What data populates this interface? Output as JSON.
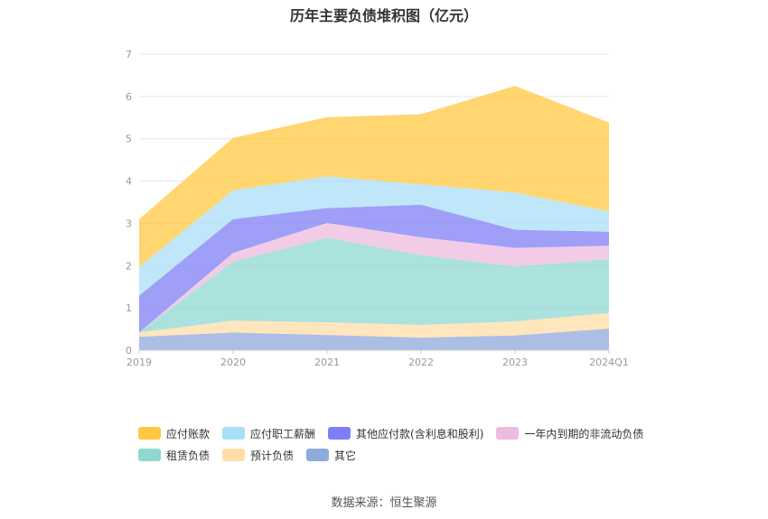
{
  "chart_data": {
    "type": "area",
    "stacked": true,
    "title": "历年主要负债堆积图（亿元）",
    "categories": [
      "2019",
      "2020",
      "2021",
      "2022",
      "2023",
      "2024Q1"
    ],
    "ylim": [
      0,
      7
    ],
    "yticks": [
      "0",
      "1",
      "2",
      "3",
      "4",
      "5",
      "6",
      "7"
    ],
    "grid": true,
    "legend_position": "bottom",
    "series": [
      {
        "name": "其它",
        "color": "#8FAADC",
        "values": [
          0.32,
          0.42,
          0.36,
          0.3,
          0.35,
          0.51
        ]
      },
      {
        "name": "预计负债",
        "color": "#FFDDA6",
        "values": [
          0.1,
          0.28,
          0.3,
          0.3,
          0.33,
          0.37
        ]
      },
      {
        "name": "租赁负债",
        "color": "#8FD8D2",
        "values": [
          0.0,
          1.4,
          2.0,
          1.65,
          1.3,
          1.27
        ]
      },
      {
        "name": "一年内到期的非流动负债",
        "color": "#EDBBDD",
        "values": [
          0.0,
          0.2,
          0.35,
          0.42,
          0.44,
          0.32
        ]
      },
      {
        "name": "其他应付款(含利息和股利)",
        "color": "#7F7FF5",
        "values": [
          0.87,
          0.8,
          0.35,
          0.77,
          0.43,
          0.33
        ]
      },
      {
        "name": "应付职工薪酬",
        "color": "#A9DFF7",
        "values": [
          0.68,
          0.68,
          0.75,
          0.48,
          0.88,
          0.48
        ]
      },
      {
        "name": "应付账款",
        "color": "#FFC840",
        "values": [
          1.13,
          1.24,
          1.4,
          1.66,
          2.52,
          2.1
        ]
      }
    ],
    "legend_order": [
      "应付账款",
      "应付职工薪酬",
      "其他应付款(含利息和股利)",
      "一年内到期的非流动负债",
      "租赁负债",
      "预计负债",
      "其它"
    ]
  },
  "source": "数据来源：恒生聚源"
}
